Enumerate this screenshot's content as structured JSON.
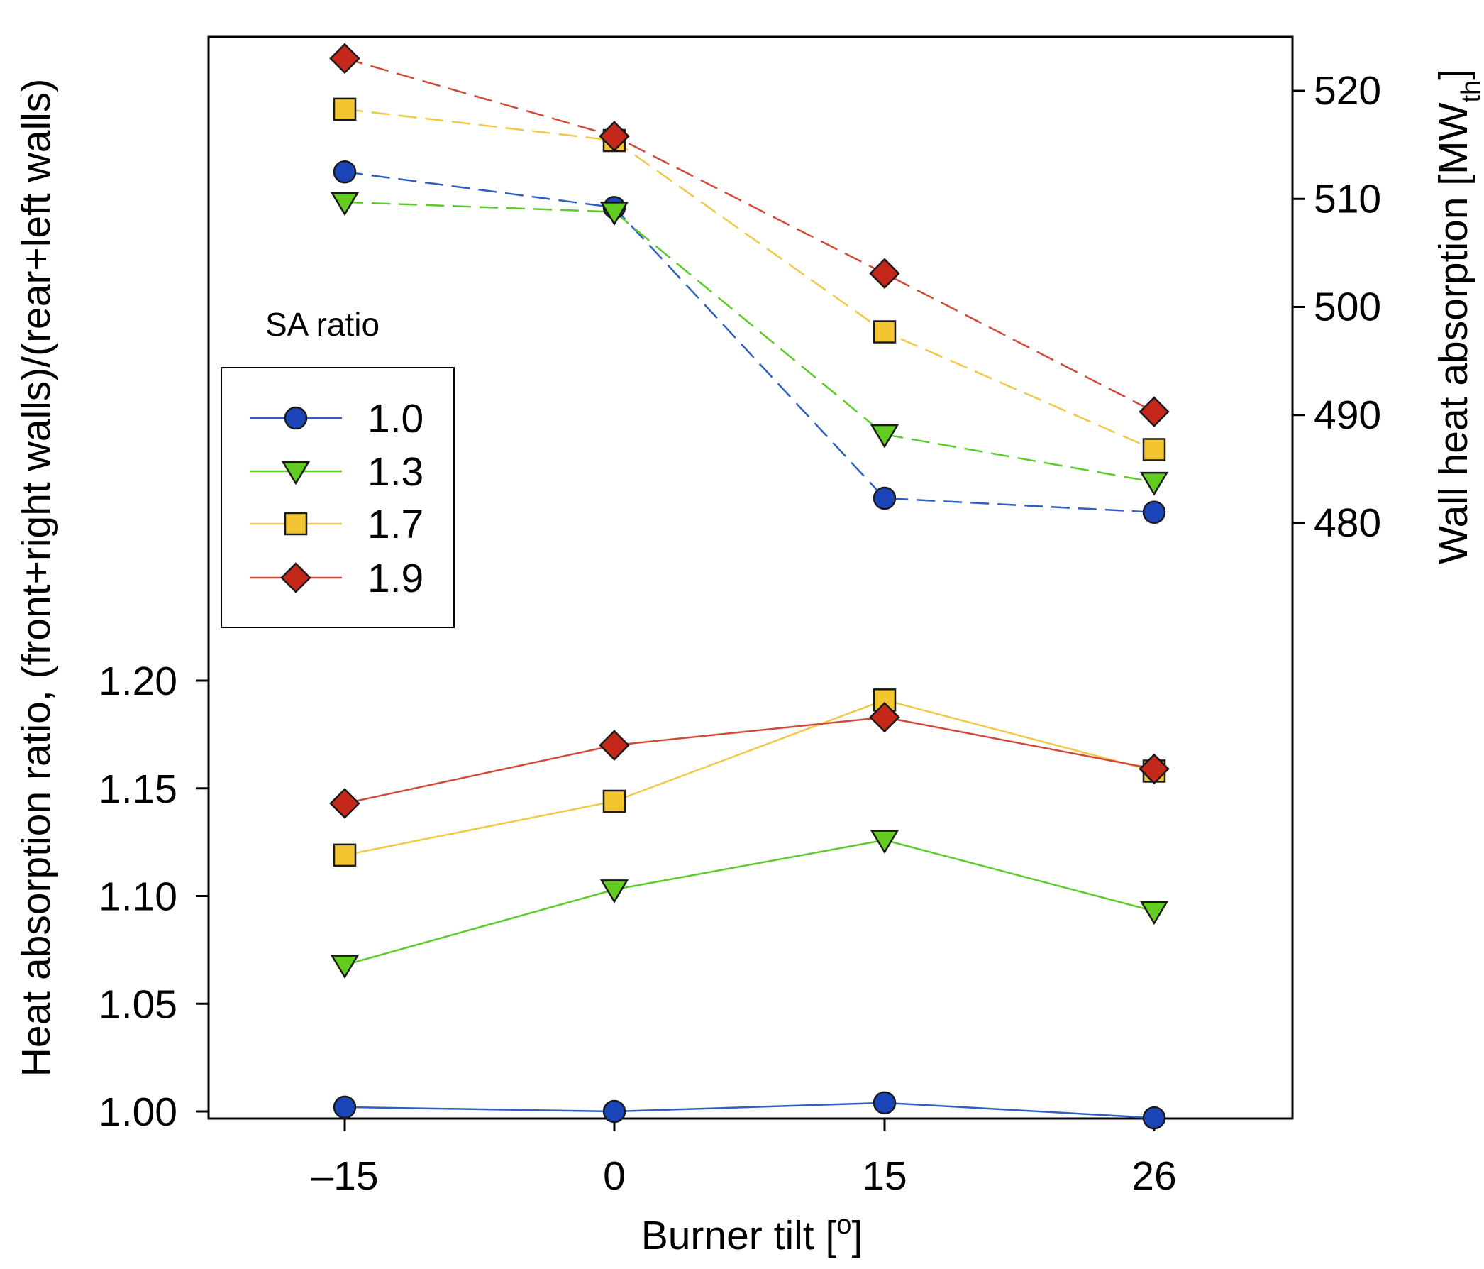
{
  "chart_data": {
    "type": "line",
    "xlabel": "Burner tilt [",
    "xlabel_sup": "o",
    "xlabel_end": "]",
    "ylabel_left": "Heat absorption ratio, (front+right walls)/(rear+left walls)",
    "ylabel_right": "Wall heat absorption [MW",
    "ylabel_right_sub": "th",
    "ylabel_right_end": "]",
    "x": [
      -15,
      0,
      15,
      26
    ],
    "x_tick_labels": [
      "–15",
      "0",
      "15",
      "26"
    ],
    "y_left_ticks": [
      1.0,
      1.05,
      1.1,
      1.15,
      1.2
    ],
    "y_left_tick_labels": [
      "1.00",
      "1.05",
      "1.10",
      "1.15",
      "1.20"
    ],
    "y_right_ticks": [
      480,
      490,
      500,
      510,
      520
    ],
    "y_right_tick_labels": [
      "480",
      "490",
      "500",
      "510",
      "520"
    ],
    "legend": {
      "title": "SA ratio",
      "entries": [
        "1.0",
        "1.3",
        "1.7",
        "1.9"
      ]
    },
    "series": [
      {
        "name": "1.0",
        "marker": "circle",
        "color": "#2f5fbf",
        "fill": "#1a44b8",
        "ratio": [
          1.002,
          1.0,
          1.004,
          0.997
        ],
        "wall_heat": [
          512.5,
          509.2,
          482.3,
          481.0
        ]
      },
      {
        "name": "1.3",
        "marker": "triangle-down",
        "color": "#5ccb2b",
        "fill": "#62cc20",
        "ratio": [
          1.068,
          1.103,
          1.126,
          1.093
        ],
        "wall_heat": [
          509.7,
          508.8,
          488.2,
          483.8
        ]
      },
      {
        "name": "1.7",
        "marker": "square",
        "color": "#f0c84a",
        "fill": "#f2c531",
        "ratio": [
          1.119,
          1.144,
          1.191,
          1.158
        ],
        "wall_heat": [
          518.3,
          515.4,
          497.7,
          486.8
        ]
      },
      {
        "name": "1.9",
        "marker": "diamond",
        "color": "#d04a3a",
        "fill": "#c4281a",
        "ratio": [
          1.143,
          1.17,
          1.183,
          1.159
        ],
        "wall_heat": [
          523.0,
          515.8,
          503.1,
          490.3
        ]
      }
    ]
  }
}
